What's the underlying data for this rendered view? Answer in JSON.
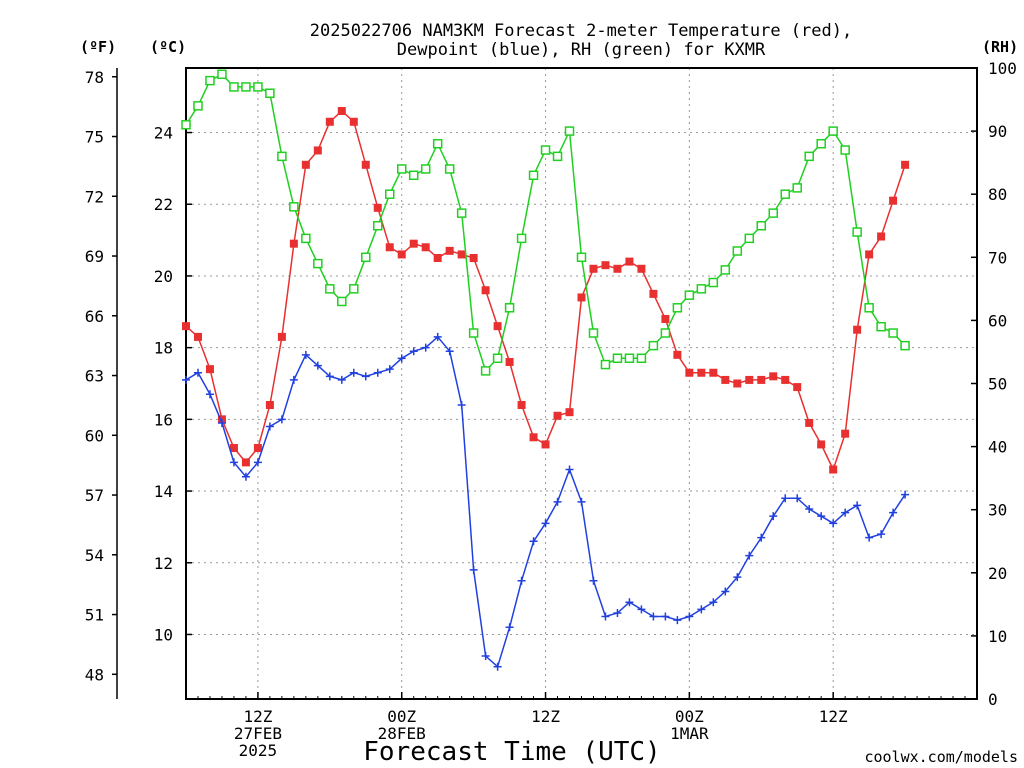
{
  "title_line1": "2025022706 NAM3KM Forecast 2-meter Temperature (red),",
  "title_line2": "Dewpoint (blue), RH (green) for KXMR",
  "unit_f": "(ºF)",
  "unit_c": "(ºC)",
  "unit_rh": "(RH)",
  "xlabel": "Forecast Time (UTC)",
  "credit": "coolwx.com/models",
  "colors": {
    "temperature": "#e83030",
    "dewpoint": "#2040e0",
    "rh": "#20d020",
    "credit": "#e03030"
  },
  "chart_data": {
    "type": "line",
    "title": "2025022706 NAM3KM Forecast 2-meter Temperature (red), Dewpoint (blue), RH (green) for KXMR",
    "xlabel": "Forecast Time (UTC)",
    "x_unit": "forecast hour from 2025-02-27 06Z",
    "x_range": [
      0,
      66
    ],
    "x_ticks": [
      {
        "hour": 6,
        "lines": [
          "12Z",
          "27FEB",
          "2025"
        ]
      },
      {
        "hour": 18,
        "lines": [
          "00Z",
          "28FEB"
        ]
      },
      {
        "hour": 30,
        "lines": [
          "12Z"
        ]
      },
      {
        "hour": 42,
        "lines": [
          "00Z",
          "1MAR"
        ]
      },
      {
        "hour": 54,
        "lines": [
          "12Z"
        ]
      }
    ],
    "y_left_c": {
      "range": [
        8.2,
        25.8
      ],
      "ticks": [
        10,
        12,
        14,
        16,
        18,
        20,
        22,
        24
      ]
    },
    "y_left_f": {
      "ticks": [
        48,
        51,
        54,
        57,
        60,
        63,
        66,
        69,
        72,
        75,
        78
      ]
    },
    "y_right_rh": {
      "range": [
        0,
        100
      ],
      "ticks": [
        0,
        10,
        20,
        30,
        40,
        50,
        60,
        70,
        80,
        90,
        100
      ]
    },
    "grid": true,
    "series": [
      {
        "name": "Temperature",
        "axis": "celsius",
        "marker": "filled-square",
        "values": [
          18.6,
          18.3,
          17.4,
          16.0,
          15.2,
          14.8,
          15.2,
          16.4,
          18.3,
          20.9,
          23.1,
          23.5,
          24.3,
          24.6,
          24.3,
          23.1,
          21.9,
          20.8,
          20.6,
          20.9,
          20.8,
          20.5,
          20.7,
          20.6,
          20.5,
          19.6,
          18.6,
          17.6,
          16.4,
          15.5,
          15.3,
          16.1,
          16.2,
          19.4,
          20.2,
          20.3,
          20.2,
          20.4,
          20.2,
          19.5,
          18.8,
          17.8,
          17.3,
          17.3,
          17.3,
          17.1,
          17.0,
          17.1,
          17.1,
          17.2,
          17.1,
          16.9,
          15.9,
          15.3,
          14.6,
          15.6,
          18.5,
          20.6,
          21.1,
          22.1,
          23.1
        ]
      },
      {
        "name": "Dewpoint",
        "axis": "celsius",
        "marker": "plus",
        "values": [
          17.1,
          17.3,
          16.7,
          15.9,
          14.8,
          14.4,
          14.8,
          15.8,
          16.0,
          17.1,
          17.8,
          17.5,
          17.2,
          17.1,
          17.3,
          17.2,
          17.3,
          17.4,
          17.7,
          17.9,
          18.0,
          18.3,
          17.9,
          16.4,
          11.8,
          9.4,
          9.1,
          10.2,
          11.5,
          12.6,
          13.1,
          13.7,
          14.6,
          13.7,
          11.5,
          10.5,
          10.6,
          10.9,
          10.7,
          10.5,
          10.5,
          10.4,
          10.5,
          10.7,
          10.9,
          11.2,
          11.6,
          12.2,
          12.7,
          13.3,
          13.8,
          13.8,
          13.5,
          13.3,
          13.1,
          13.4,
          13.6,
          12.7,
          12.8,
          13.4,
          13.9
        ]
      },
      {
        "name": "RH",
        "axis": "rh",
        "marker": "open-square",
        "values": [
          91,
          94,
          98,
          99,
          97,
          97,
          97,
          96,
          86,
          78,
          73,
          69,
          65,
          63,
          65,
          70,
          75,
          80,
          84,
          83,
          84,
          88,
          84,
          77,
          58,
          52,
          54,
          62,
          73,
          83,
          87,
          86,
          90,
          70,
          58,
          53,
          54,
          54,
          54,
          56,
          58,
          62,
          64,
          65,
          66,
          68,
          71,
          73,
          75,
          77,
          80,
          81,
          86,
          88,
          90,
          87,
          74,
          62,
          59,
          58,
          56
        ]
      }
    ]
  }
}
